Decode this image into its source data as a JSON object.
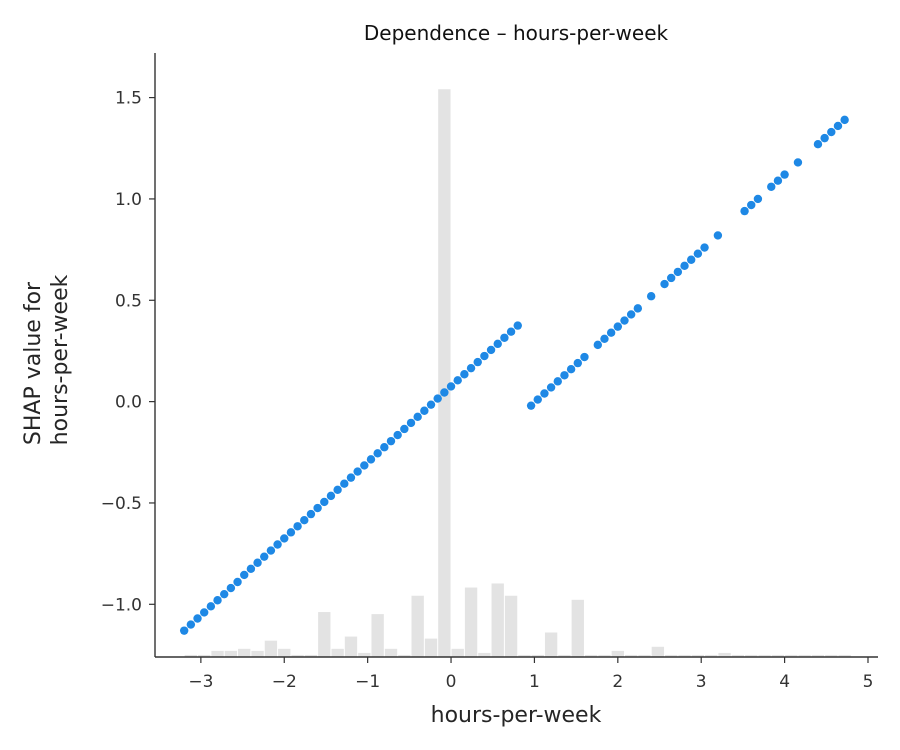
{
  "chart_data": {
    "type": "scatter",
    "title": "Dependence – hours-per-week",
    "xlabel": "hours-per-week",
    "ylabel_lines": [
      "SHAP value for",
      "hours-per-week"
    ],
    "xlim": [
      -3.55,
      5.12
    ],
    "ylim": [
      -1.26,
      1.72
    ],
    "xticks": [
      -3,
      -2,
      -1,
      0,
      1,
      2,
      3,
      4,
      5
    ],
    "xtick_labels": [
      "−3",
      "−2",
      "−1",
      "0",
      "1",
      "2",
      "3",
      "4",
      "5"
    ],
    "yticks": [
      -1.0,
      -0.5,
      0.0,
      0.5,
      1.0,
      1.5
    ],
    "ytick_labels": [
      "−1.0",
      "−0.5",
      "0.0",
      "0.5",
      "1.0",
      "1.5"
    ],
    "grid": false,
    "colors": {
      "points": "#1e88e5",
      "histogram": "#e3e3e3",
      "axis": "#333333"
    },
    "series": [
      {
        "x": [
          -3.2,
          -3.12,
          -3.04,
          -2.96,
          -2.88,
          -2.8,
          -2.72,
          -2.64,
          -2.56,
          -2.48,
          -2.4,
          -2.32,
          -2.24,
          -2.16,
          -2.08,
          -2.0,
          -1.92,
          -1.84,
          -1.76,
          -1.68,
          -1.6,
          -1.52,
          -1.44,
          -1.36,
          -1.28,
          -1.2,
          -1.12,
          -1.04,
          -0.96,
          -0.88,
          -0.8,
          -0.72,
          -0.64,
          -0.56,
          -0.48,
          -0.4,
          -0.32,
          -0.24,
          -0.16,
          -0.08,
          0.0,
          0.08,
          0.16,
          0.24,
          0.32,
          0.4,
          0.48,
          0.56,
          0.64,
          0.72,
          0.8,
          0.96,
          1.04,
          1.12,
          1.2,
          1.28,
          1.36,
          1.44,
          1.52,
          1.6,
          1.76,
          1.84,
          1.92,
          2.0,
          2.08,
          2.16,
          2.24,
          2.4,
          2.56,
          2.64,
          2.72,
          2.8,
          2.88,
          2.96,
          3.04,
          3.2,
          3.52,
          3.6,
          3.68,
          3.84,
          3.92,
          4.0,
          4.16,
          4.4,
          4.48,
          4.56,
          4.64,
          4.72
        ],
        "y": [
          -1.13,
          -1.1,
          -1.07,
          -1.04,
          -1.01,
          -0.98,
          -0.95,
          -0.92,
          -0.89,
          -0.855,
          -0.825,
          -0.795,
          -0.765,
          -0.735,
          -0.705,
          -0.675,
          -0.645,
          -0.615,
          -0.585,
          -0.555,
          -0.525,
          -0.495,
          -0.465,
          -0.435,
          -0.405,
          -0.375,
          -0.345,
          -0.315,
          -0.285,
          -0.255,
          -0.225,
          -0.195,
          -0.165,
          -0.135,
          -0.105,
          -0.075,
          -0.045,
          -0.015,
          0.015,
          0.045,
          0.075,
          0.105,
          0.135,
          0.165,
          0.195,
          0.225,
          0.255,
          0.285,
          0.315,
          0.345,
          0.375,
          -0.02,
          0.01,
          0.04,
          0.07,
          0.1,
          0.13,
          0.16,
          0.19,
          0.22,
          0.28,
          0.31,
          0.34,
          0.37,
          0.4,
          0.43,
          0.46,
          0.52,
          0.58,
          0.61,
          0.64,
          0.67,
          0.7,
          0.73,
          0.76,
          0.82,
          0.94,
          0.97,
          1.0,
          1.06,
          1.09,
          1.12,
          1.18,
          1.27,
          1.3,
          1.33,
          1.36,
          1.39
        ]
      }
    ],
    "histogram": {
      "bin_edges": [
        -3.2,
        -3.04,
        -2.88,
        -2.72,
        -2.56,
        -2.4,
        -2.24,
        -2.08,
        -1.92,
        -1.76,
        -1.6,
        -1.44,
        -1.28,
        -1.12,
        -0.96,
        -0.8,
        -0.64,
        -0.48,
        -0.32,
        -0.16,
        0.0,
        0.16,
        0.32,
        0.48,
        0.64,
        0.8,
        0.96,
        1.12,
        1.28,
        1.44,
        1.6,
        1.76,
        1.92,
        2.08,
        2.24,
        2.4,
        2.56,
        2.72,
        2.88,
        3.04,
        3.2,
        3.36,
        3.52,
        3.68,
        3.84,
        4.0,
        4.16,
        4.32,
        4.48,
        4.64,
        4.8
      ],
      "counts": [
        0.5,
        0.5,
        1.5,
        1.5,
        2,
        1.5,
        4,
        2,
        0.5,
        0.5,
        11,
        2,
        5,
        1,
        10.5,
        2,
        0.5,
        15,
        4.5,
        139,
        2,
        17,
        1,
        18,
        15,
        0.5,
        0.5,
        6,
        0.5,
        14,
        0.5,
        0.5,
        1.5,
        0.5,
        0.5,
        2.5,
        0.5,
        0.5,
        0.5,
        0.5,
        1,
        0.5,
        0.5,
        0.5,
        0.5,
        0.5,
        0.5,
        0.5,
        0.5,
        0.5
      ],
      "max_count_display_fraction": 0.94
    }
  }
}
